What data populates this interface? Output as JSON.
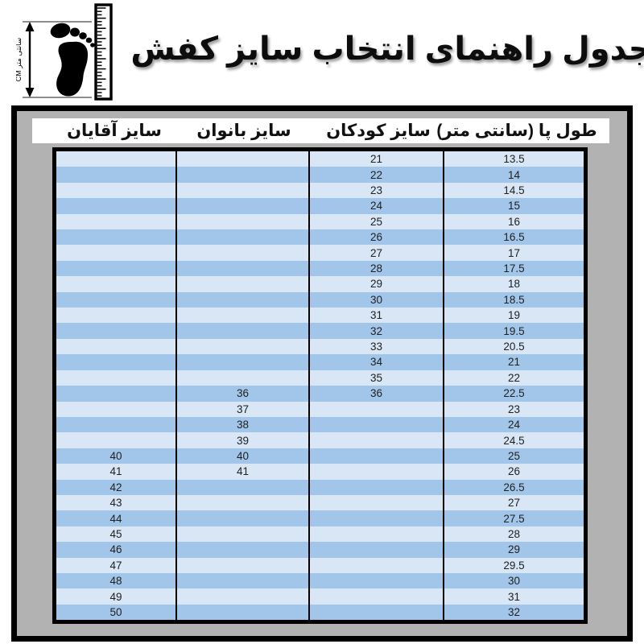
{
  "title": "جدول راهنمای انتخاب سایز کفش",
  "logo_label": "CM سانتی متر",
  "colors": {
    "frame_gray": "#b2b2b2",
    "row_light": "#d8e6f6",
    "row_dark": "#a1c6e9",
    "border_black": "#000000",
    "header_band": "#ffffff"
  },
  "chart_data": {
    "type": "table",
    "title": "جدول راهنمای انتخاب سایز کفش",
    "columns": [
      "سایز آقایان",
      "سایز بانوان",
      "سایز کودکان",
      "طول پا (سانتی متر)"
    ],
    "rows": [
      [
        "",
        "",
        "21",
        "13.5"
      ],
      [
        "",
        "",
        "22",
        "14"
      ],
      [
        "",
        "",
        "23",
        "14.5"
      ],
      [
        "",
        "",
        "24",
        "15"
      ],
      [
        "",
        "",
        "25",
        "16"
      ],
      [
        "",
        "",
        "26",
        "16.5"
      ],
      [
        "",
        "",
        "27",
        "17"
      ],
      [
        "",
        "",
        "28",
        "17.5"
      ],
      [
        "",
        "",
        "29",
        "18"
      ],
      [
        "",
        "",
        "30",
        "18.5"
      ],
      [
        "",
        "",
        "31",
        "19"
      ],
      [
        "",
        "",
        "32",
        "19.5"
      ],
      [
        "",
        "",
        "33",
        "20.5"
      ],
      [
        "",
        "",
        "34",
        "21"
      ],
      [
        "",
        "",
        "35",
        "22"
      ],
      [
        "",
        "36",
        "36",
        "22.5"
      ],
      [
        "",
        "37",
        "",
        "23"
      ],
      [
        "",
        "38",
        "",
        "24"
      ],
      [
        "",
        "39",
        "",
        "24.5"
      ],
      [
        "40",
        "40",
        "",
        "25"
      ],
      [
        "41",
        "41",
        "",
        "26"
      ],
      [
        "42",
        "",
        "",
        "26.5"
      ],
      [
        "43",
        "",
        "",
        "27"
      ],
      [
        "44",
        "",
        "",
        "27.5"
      ],
      [
        "45",
        "",
        "",
        "28"
      ],
      [
        "46",
        "",
        "",
        "29"
      ],
      [
        "47",
        "",
        "",
        "29.5"
      ],
      [
        "48",
        "",
        "",
        "30"
      ],
      [
        "49",
        "",
        "",
        "31"
      ],
      [
        "50",
        "",
        "",
        "32"
      ]
    ]
  }
}
